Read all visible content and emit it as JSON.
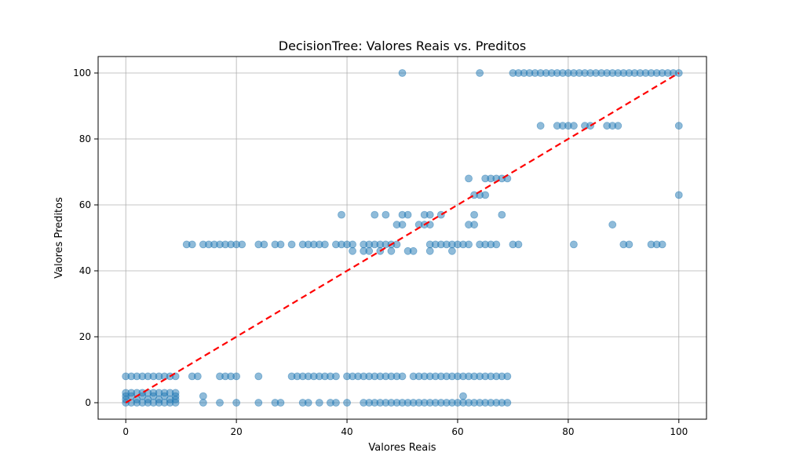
{
  "chart_data": {
    "type": "scatter",
    "title": "DecisionTree: Valores Reais vs. Preditos",
    "xlabel": "Valores Reais",
    "ylabel": "Valores Preditos",
    "xlim": [
      -5,
      105
    ],
    "ylim": [
      -5,
      105
    ],
    "xticks": [
      0,
      20,
      40,
      60,
      80,
      100
    ],
    "yticks": [
      0,
      20,
      40,
      60,
      80,
      100
    ],
    "x_tick_labels": [
      "0",
      "20",
      "40",
      "60",
      "80",
      "100"
    ],
    "y_tick_labels": [
      "0",
      "20",
      "40",
      "60",
      "80",
      "100"
    ],
    "grid": true,
    "colors": {
      "points": "#1f77b4",
      "reference_line": "#ff0000"
    },
    "reference_line": {
      "x": [
        0,
        100
      ],
      "y": [
        0,
        100
      ],
      "style": "dashed"
    },
    "points": [
      [
        0,
        0
      ],
      [
        1,
        0
      ],
      [
        2,
        0
      ],
      [
        3,
        0
      ],
      [
        4,
        0
      ],
      [
        5,
        0
      ],
      [
        6,
        0
      ],
      [
        7,
        0
      ],
      [
        8,
        0
      ],
      [
        9,
        0
      ],
      [
        0,
        1
      ],
      [
        2,
        1
      ],
      [
        4,
        1
      ],
      [
        6,
        1
      ],
      [
        8,
        1
      ],
      [
        9,
        1
      ],
      [
        0,
        2
      ],
      [
        1,
        2
      ],
      [
        3,
        2
      ],
      [
        5,
        2
      ],
      [
        7,
        2
      ],
      [
        9,
        2
      ],
      [
        0,
        3
      ],
      [
        1,
        3
      ],
      [
        2,
        3
      ],
      [
        3,
        3
      ],
      [
        4,
        3
      ],
      [
        5,
        3
      ],
      [
        6,
        3
      ],
      [
        7,
        3
      ],
      [
        8,
        3
      ],
      [
        9,
        3
      ],
      [
        0,
        8
      ],
      [
        1,
        8
      ],
      [
        2,
        8
      ],
      [
        3,
        8
      ],
      [
        4,
        8
      ],
      [
        5,
        8
      ],
      [
        6,
        8
      ],
      [
        7,
        8
      ],
      [
        8,
        8
      ],
      [
        9,
        8
      ],
      [
        12,
        8
      ],
      [
        13,
        8
      ],
      [
        17,
        8
      ],
      [
        18,
        8
      ],
      [
        19,
        8
      ],
      [
        20,
        8
      ],
      [
        24,
        8
      ],
      [
        30,
        8
      ],
      [
        31,
        8
      ],
      [
        32,
        8
      ],
      [
        33,
        8
      ],
      [
        34,
        8
      ],
      [
        35,
        8
      ],
      [
        36,
        8
      ],
      [
        37,
        8
      ],
      [
        38,
        8
      ],
      [
        40,
        8
      ],
      [
        41,
        8
      ],
      [
        42,
        8
      ],
      [
        43,
        8
      ],
      [
        44,
        8
      ],
      [
        45,
        8
      ],
      [
        46,
        8
      ],
      [
        47,
        8
      ],
      [
        48,
        8
      ],
      [
        49,
        8
      ],
      [
        50,
        8
      ],
      [
        52,
        8
      ],
      [
        53,
        8
      ],
      [
        54,
        8
      ],
      [
        55,
        8
      ],
      [
        56,
        8
      ],
      [
        57,
        8
      ],
      [
        58,
        8
      ],
      [
        59,
        8
      ],
      [
        60,
        8
      ],
      [
        61,
        8
      ],
      [
        62,
        8
      ],
      [
        63,
        8
      ],
      [
        64,
        8
      ],
      [
        65,
        8
      ],
      [
        66,
        8
      ],
      [
        67,
        8
      ],
      [
        68,
        8
      ],
      [
        69,
        8
      ],
      [
        14,
        0
      ],
      [
        14,
        2
      ],
      [
        17,
        0
      ],
      [
        20,
        0
      ],
      [
        24,
        0
      ],
      [
        27,
        0
      ],
      [
        28,
        0
      ],
      [
        32,
        0
      ],
      [
        33,
        0
      ],
      [
        35,
        0
      ],
      [
        37,
        0
      ],
      [
        38,
        0
      ],
      [
        40,
        0
      ],
      [
        43,
        0
      ],
      [
        44,
        0
      ],
      [
        45,
        0
      ],
      [
        46,
        0
      ],
      [
        47,
        0
      ],
      [
        48,
        0
      ],
      [
        49,
        0
      ],
      [
        50,
        0
      ],
      [
        51,
        0
      ],
      [
        52,
        0
      ],
      [
        53,
        0
      ],
      [
        54,
        0
      ],
      [
        55,
        0
      ],
      [
        56,
        0
      ],
      [
        57,
        0
      ],
      [
        58,
        0
      ],
      [
        59,
        0
      ],
      [
        60,
        0
      ],
      [
        61,
        0
      ],
      [
        62,
        0
      ],
      [
        63,
        0
      ],
      [
        64,
        0
      ],
      [
        65,
        0
      ],
      [
        66,
        0
      ],
      [
        67,
        0
      ],
      [
        68,
        0
      ],
      [
        69,
        0
      ],
      [
        61,
        2
      ],
      [
        11,
        48
      ],
      [
        12,
        48
      ],
      [
        14,
        48
      ],
      [
        15,
        48
      ],
      [
        16,
        48
      ],
      [
        17,
        48
      ],
      [
        18,
        48
      ],
      [
        19,
        48
      ],
      [
        20,
        48
      ],
      [
        21,
        48
      ],
      [
        24,
        48
      ],
      [
        25,
        48
      ],
      [
        27,
        48
      ],
      [
        28,
        48
      ],
      [
        30,
        48
      ],
      [
        32,
        48
      ],
      [
        33,
        48
      ],
      [
        34,
        48
      ],
      [
        35,
        48
      ],
      [
        36,
        48
      ],
      [
        38,
        48
      ],
      [
        39,
        48
      ],
      [
        40,
        48
      ],
      [
        41,
        48
      ],
      [
        43,
        48
      ],
      [
        44,
        48
      ],
      [
        45,
        48
      ],
      [
        46,
        48
      ],
      [
        47,
        48
      ],
      [
        48,
        48
      ],
      [
        49,
        48
      ],
      [
        55,
        48
      ],
      [
        56,
        48
      ],
      [
        57,
        48
      ],
      [
        58,
        48
      ],
      [
        59,
        48
      ],
      [
        60,
        48
      ],
      [
        61,
        48
      ],
      [
        62,
        48
      ],
      [
        64,
        48
      ],
      [
        65,
        48
      ],
      [
        66,
        48
      ],
      [
        67,
        48
      ],
      [
        70,
        48
      ],
      [
        71,
        48
      ],
      [
        81,
        48
      ],
      [
        90,
        48
      ],
      [
        91,
        48
      ],
      [
        95,
        48
      ],
      [
        96,
        48
      ],
      [
        97,
        48
      ],
      [
        41,
        46
      ],
      [
        43,
        46
      ],
      [
        44,
        46
      ],
      [
        46,
        46
      ],
      [
        48,
        46
      ],
      [
        51,
        46
      ],
      [
        52,
        46
      ],
      [
        55,
        46
      ],
      [
        59,
        46
      ],
      [
        39,
        57
      ],
      [
        45,
        57
      ],
      [
        47,
        57
      ],
      [
        50,
        57
      ],
      [
        51,
        57
      ],
      [
        54,
        57
      ],
      [
        55,
        57
      ],
      [
        57,
        57
      ],
      [
        68,
        57
      ],
      [
        49,
        54
      ],
      [
        50,
        54
      ],
      [
        53,
        54
      ],
      [
        54,
        54
      ],
      [
        55,
        54
      ],
      [
        62,
        54
      ],
      [
        63,
        54
      ],
      [
        88,
        54
      ],
      [
        62,
        68
      ],
      [
        63,
        63
      ],
      [
        64,
        63
      ],
      [
        65,
        63
      ],
      [
        63,
        57
      ],
      [
        65,
        68
      ],
      [
        66,
        68
      ],
      [
        67,
        68
      ],
      [
        68,
        68
      ],
      [
        69,
        68
      ],
      [
        50,
        100
      ],
      [
        64,
        100
      ],
      [
        70,
        100
      ],
      [
        71,
        100
      ],
      [
        72,
        100
      ],
      [
        73,
        100
      ],
      [
        74,
        100
      ],
      [
        75,
        100
      ],
      [
        76,
        100
      ],
      [
        77,
        100
      ],
      [
        78,
        100
      ],
      [
        79,
        100
      ],
      [
        80,
        100
      ],
      [
        81,
        100
      ],
      [
        82,
        100
      ],
      [
        83,
        100
      ],
      [
        84,
        100
      ],
      [
        85,
        100
      ],
      [
        86,
        100
      ],
      [
        87,
        100
      ],
      [
        88,
        100
      ],
      [
        89,
        100
      ],
      [
        90,
        100
      ],
      [
        91,
        100
      ],
      [
        92,
        100
      ],
      [
        93,
        100
      ],
      [
        94,
        100
      ],
      [
        95,
        100
      ],
      [
        96,
        100
      ],
      [
        97,
        100
      ],
      [
        98,
        100
      ],
      [
        99,
        100
      ],
      [
        100,
        100
      ],
      [
        75,
        84
      ],
      [
        78,
        84
      ],
      [
        79,
        84
      ],
      [
        80,
        84
      ],
      [
        81,
        84
      ],
      [
        83,
        84
      ],
      [
        84,
        84
      ],
      [
        87,
        84
      ],
      [
        88,
        84
      ],
      [
        89,
        84
      ],
      [
        100,
        84
      ],
      [
        100,
        63
      ]
    ]
  }
}
